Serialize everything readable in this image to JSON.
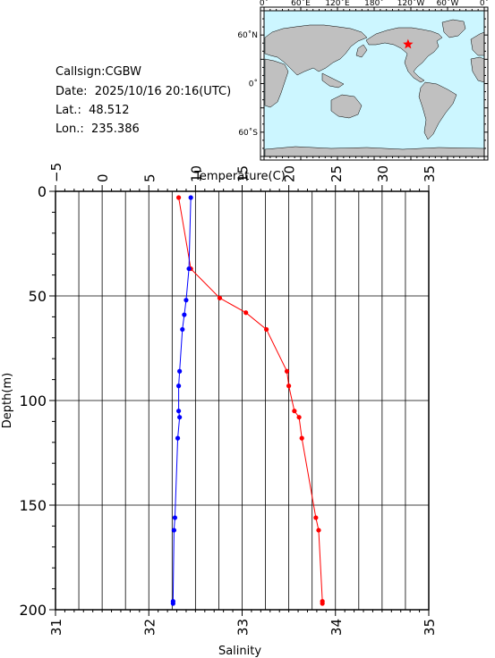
{
  "info": {
    "callsign": "Callsign:CGBW",
    "date": "Date:  2025/10/16 20:16(UTC)",
    "lat": "Lat.:  48.512",
    "lon": "Lon.:  235.386"
  },
  "map": {
    "top_labels": [
      "0˚",
      "60˚E",
      "120˚E",
      "180˚",
      "120˚W",
      "60˚W",
      "0˚"
    ],
    "left_labels": [
      "60˚N",
      "0˚",
      "60˚S"
    ],
    "ocean_color": "#ccf6ff",
    "land_color": "#c0c0c0",
    "marker_color": "#ff0000",
    "station_lon": 235.386,
    "station_lat": 48.512
  },
  "chart_data": {
    "type": "line",
    "ylabel": "Depth(m)",
    "ylim": [
      0,
      200
    ],
    "y_inverted": true,
    "y_ticks": [
      "0",
      "50",
      "100",
      "150",
      "200"
    ],
    "grid": true,
    "top_axis": {
      "label": "Temperature(C)",
      "range": [
        -5,
        35
      ],
      "ticks": [
        "−5",
        "0",
        "5",
        "10",
        "15",
        "20",
        "25",
        "30",
        "35"
      ]
    },
    "bottom_axis": {
      "label": "Salinity",
      "range": [
        31,
        35
      ],
      "ticks": [
        "31",
        "32",
        "33",
        "34",
        "35"
      ]
    },
    "series": [
      {
        "axis": "top",
        "color": "#ff0000",
        "points": [
          {
            "x": 8.2,
            "y": 3
          },
          {
            "x": 9.5,
            "y": 37
          },
          {
            "x": 12.6,
            "y": 51
          },
          {
            "x": 15.4,
            "y": 58
          },
          {
            "x": 17.6,
            "y": 66
          },
          {
            "x": 19.8,
            "y": 86
          },
          {
            "x": 20.0,
            "y": 93
          },
          {
            "x": 20.6,
            "y": 105
          },
          {
            "x": 21.1,
            "y": 108
          },
          {
            "x": 21.4,
            "y": 118
          },
          {
            "x": 22.9,
            "y": 156
          },
          {
            "x": 23.2,
            "y": 162
          },
          {
            "x": 23.6,
            "y": 196
          },
          {
            "x": 23.6,
            "y": 197
          }
        ]
      },
      {
        "axis": "bottom",
        "color": "#0000ff",
        "points": [
          {
            "x": 32.45,
            "y": 3
          },
          {
            "x": 32.43,
            "y": 37
          },
          {
            "x": 32.4,
            "y": 52
          },
          {
            "x": 32.38,
            "y": 59
          },
          {
            "x": 32.36,
            "y": 66
          },
          {
            "x": 32.33,
            "y": 86
          },
          {
            "x": 32.32,
            "y": 93
          },
          {
            "x": 32.32,
            "y": 105
          },
          {
            "x": 32.33,
            "y": 108
          },
          {
            "x": 32.31,
            "y": 118
          },
          {
            "x": 32.28,
            "y": 156
          },
          {
            "x": 32.27,
            "y": 162
          },
          {
            "x": 32.26,
            "y": 196
          },
          {
            "x": 32.26,
            "y": 197
          }
        ]
      }
    ]
  }
}
